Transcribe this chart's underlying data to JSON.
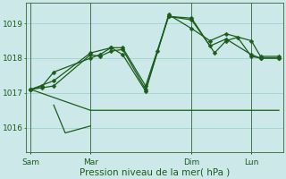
{
  "bg_color": "#cce8e8",
  "grid_color": "#99cccc",
  "line_color": "#1a5c1a",
  "xlabel": "Pression niveau de la mer( hPa )",
  "xlabel_fontsize": 7.5,
  "ytick_fontsize": 6.5,
  "xtick_fontsize": 6.5,
  "yticks": [
    1016,
    1017,
    1018,
    1019
  ],
  "ylim": [
    1015.3,
    1019.6
  ],
  "xtick_labels": [
    "Sam",
    "Mar",
    "Dim",
    "Lun"
  ],
  "xtick_positions": [
    0,
    26,
    70,
    96
  ],
  "xlim": [
    -2,
    110
  ],
  "vline_positions": [
    0,
    26,
    70,
    96
  ],
  "series1_x": [
    0,
    5,
    10,
    26,
    30,
    35,
    40,
    50,
    60,
    70,
    78,
    85,
    96,
    100,
    108
  ],
  "series1_y": [
    1017.1,
    1017.15,
    1017.2,
    1018.1,
    1018.05,
    1018.2,
    1018.25,
    1017.1,
    1019.2,
    1019.1,
    1018.35,
    1018.55,
    1018.1,
    1018.0,
    1018.0
  ],
  "series2_x": [
    0,
    5,
    10,
    26,
    30,
    35,
    40,
    50,
    60,
    70,
    78,
    85,
    96,
    100,
    108
  ],
  "series2_y": [
    1017.1,
    1017.2,
    1017.6,
    1018.0,
    1018.1,
    1018.3,
    1018.1,
    1017.05,
    1019.25,
    1018.85,
    1018.5,
    1018.7,
    1018.5,
    1018.05,
    1018.05
  ],
  "series3_x": [
    0,
    10,
    26,
    35,
    40,
    50,
    55,
    60,
    70,
    80,
    85,
    90,
    96,
    100,
    108
  ],
  "series3_y": [
    1017.1,
    1017.35,
    1018.15,
    1018.3,
    1018.3,
    1017.2,
    1018.2,
    1019.2,
    1019.15,
    1018.15,
    1018.5,
    1018.6,
    1018.05,
    1018.0,
    1018.0
  ],
  "series4_x": [
    0,
    26,
    55,
    70,
    96,
    108
  ],
  "series4_y": [
    1017.1,
    1016.5,
    1016.5,
    1016.5,
    1016.5,
    1016.5
  ],
  "series5_x": [
    10,
    15,
    26
  ],
  "series5_y": [
    1016.65,
    1015.85,
    1016.05
  ],
  "marker_size": 2.5,
  "linewidth": 0.9
}
